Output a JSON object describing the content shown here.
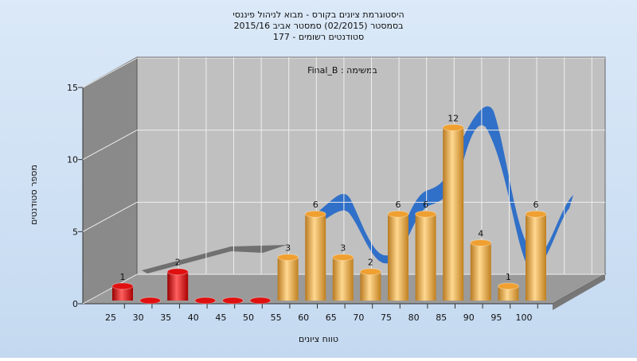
{
  "chart_data": {
    "type": "bar",
    "title": [
      "היסטוגרמת ציונים בקורס - מבוא לניהול פיננסי",
      "בסמסטר  (02/2015)  סמסטר אביב 2015/16",
      "סטודנטים רשומים - 177"
    ],
    "subtitle": "Final_B : במשימה",
    "xlabel": "טווח ציונים",
    "ylabel": "מספר סטודנטים",
    "categories": [
      "25",
      "30",
      "35",
      "40",
      "45",
      "50",
      "55",
      "60",
      "65",
      "70",
      "75",
      "80",
      "85",
      "90",
      "95",
      "100"
    ],
    "values": [
      1,
      0,
      2,
      0,
      0,
      0,
      3,
      6,
      3,
      2,
      6,
      6,
      12,
      4,
      1,
      6
    ],
    "colors": [
      "#e01010",
      "#e01010",
      "#e01010",
      "#e01010",
      "#e01010",
      "#e01010",
      "#f0a030",
      "#f0a030",
      "#f0a030",
      "#f0a030",
      "#f0a030",
      "#f0a030",
      "#f0a030",
      "#f0a030",
      "#f0a030",
      "#f0a030"
    ],
    "ylim": [
      0,
      15
    ],
    "yticks": [
      0,
      5,
      10,
      15
    ],
    "grid": true
  }
}
